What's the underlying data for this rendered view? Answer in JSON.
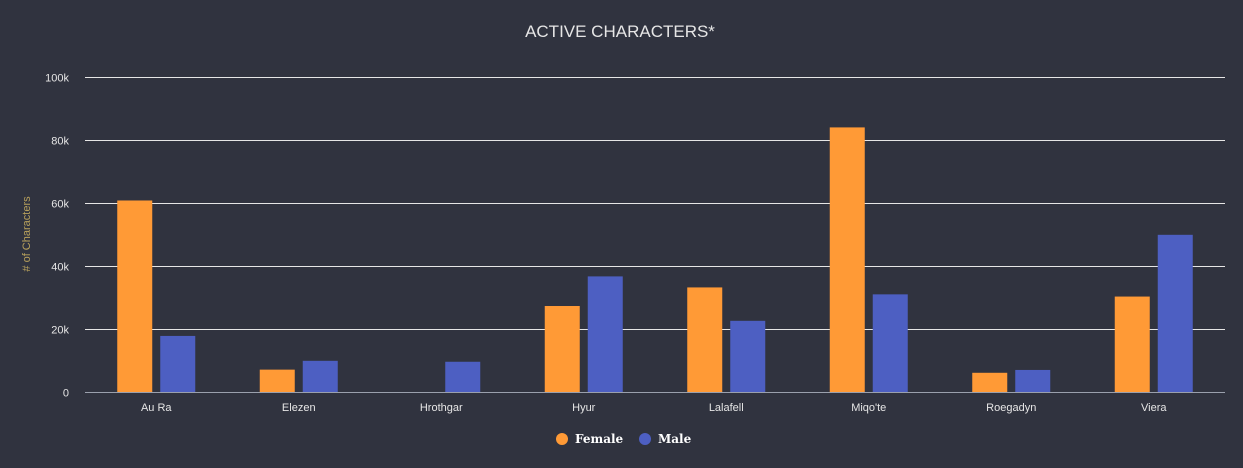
{
  "chart_data": {
    "type": "bar",
    "title": "ACTIVE CHARACTERS*",
    "xlabel": "",
    "ylabel": "# of Characters",
    "ylim": [
      0,
      100000
    ],
    "yticks": [
      {
        "value": 0,
        "label": "0"
      },
      {
        "value": 20000,
        "label": "20k"
      },
      {
        "value": 40000,
        "label": "40k"
      },
      {
        "value": 60000,
        "label": "60k"
      },
      {
        "value": 80000,
        "label": "80k"
      },
      {
        "value": 100000,
        "label": "100k"
      }
    ],
    "grid": true,
    "legend_position": "bottom-center",
    "categories": [
      "Au Ra",
      "Elezen",
      "Hrothgar",
      "Hyur",
      "Lalafell",
      "Miqo'te",
      "Roegadyn",
      "Viera"
    ],
    "series": [
      {
        "name": "Female",
        "color": "#ff9a36",
        "values": [
          60800,
          7100,
          0,
          27300,
          33200,
          84000,
          6100,
          30300
        ]
      },
      {
        "name": "Male",
        "color": "#4d5fc2",
        "values": [
          17800,
          9900,
          9600,
          36700,
          22600,
          31000,
          7000,
          49900
        ]
      }
    ]
  }
}
